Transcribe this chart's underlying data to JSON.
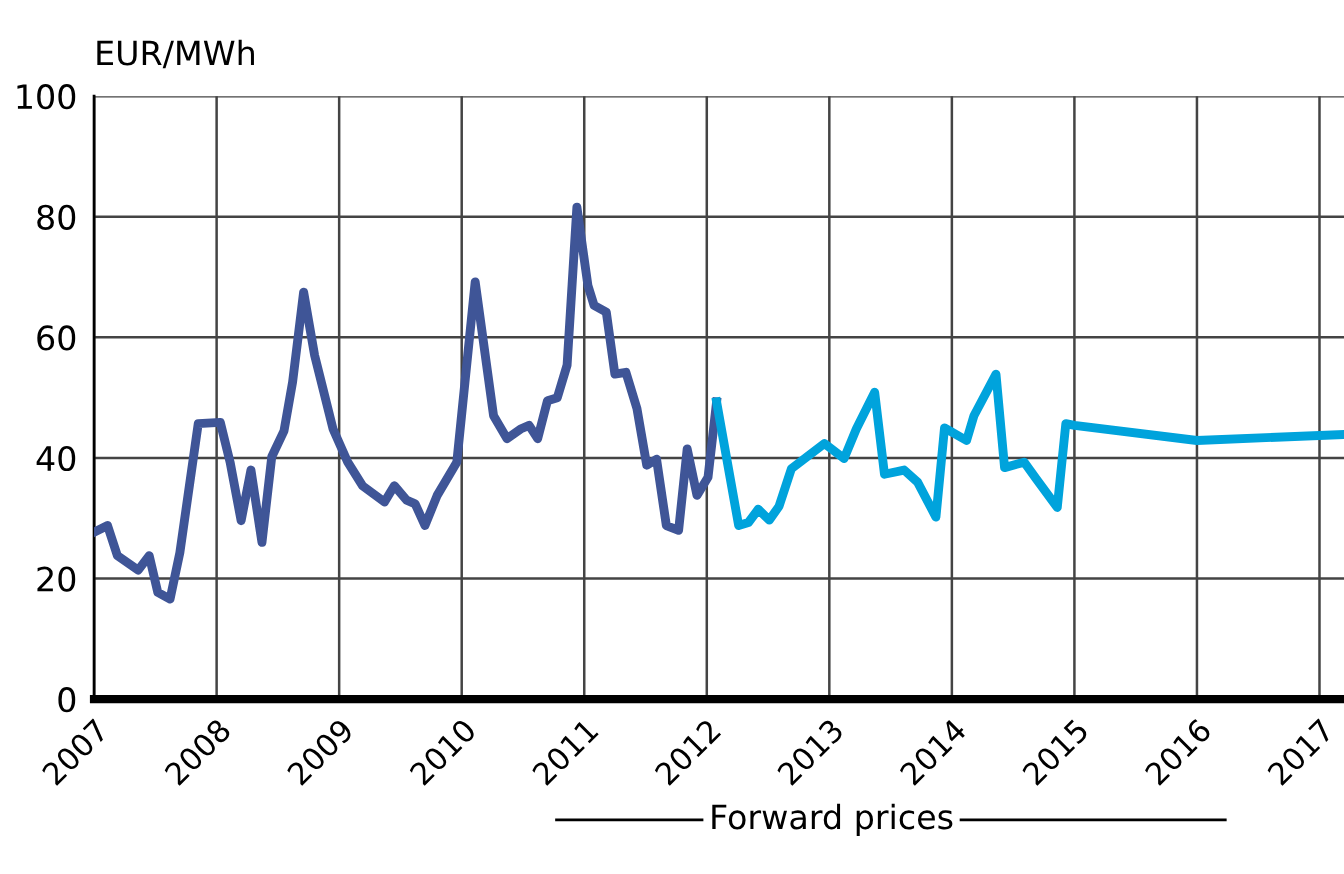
{
  "chart_data": {
    "type": "line",
    "ylabel": "EUR/MWh",
    "xlim": [
      2007,
      2017.2
    ],
    "xticks": [
      2007,
      2008,
      2009,
      2010,
      2011,
      2012,
      2013,
      2014,
      2015,
      2016,
      2017
    ],
    "ylim": [
      0,
      100
    ],
    "yticks": [
      0,
      20,
      40,
      60,
      80,
      100
    ],
    "grid": true,
    "line_style": "solid",
    "marker": "none",
    "annotations": [
      "Forward prices"
    ],
    "series": [
      {
        "color": "#3f5597",
        "x": [
          2007.0,
          2007.11,
          2007.19,
          2007.36,
          2007.45,
          2007.52,
          2007.62,
          2007.7,
          2007.85,
          2008.03,
          2008.11,
          2008.2,
          2008.28,
          2008.37,
          2008.45,
          2008.55,
          2008.62,
          2008.71,
          2008.8,
          2008.95,
          2009.07,
          2009.19,
          2009.37,
          2009.45,
          2009.55,
          2009.62,
          2009.7,
          2009.8,
          2009.96,
          2010.11,
          2010.26,
          2010.37,
          2010.48,
          2010.55,
          2010.62,
          2010.7,
          2010.78,
          2010.86,
          2010.94,
          2011.03,
          2011.08,
          2011.18,
          2011.25,
          2011.34,
          2011.43,
          2011.51,
          2011.59,
          2011.67,
          2011.77,
          2011.84,
          2011.92,
          2012.01,
          2012.08
        ],
        "values": [
          27.7,
          28.8,
          23.8,
          21.4,
          23.8,
          17.7,
          16.6,
          24.3,
          45.7,
          45.9,
          39.3,
          29.6,
          38,
          26,
          40.2,
          44.5,
          52.6,
          67.5,
          57,
          44.8,
          39.3,
          35.4,
          32.7,
          35.4,
          33,
          32.4,
          28.8,
          33.8,
          39.3,
          69.2,
          47,
          43.2,
          44.8,
          45.4,
          43.2,
          49.5,
          50,
          55.4,
          81.6,
          68.6,
          65.3,
          64.2,
          53.9,
          54.2,
          48.2,
          38.8,
          39.8,
          28.8,
          28,
          41.5,
          33.8,
          36.8,
          49.3
        ]
      },
      {
        "color": "#00a3dc",
        "x": [
          2012.08,
          2012.26,
          2012.34,
          2012.42,
          2012.51,
          2012.59,
          2012.69,
          2012.96,
          2013.12,
          2013.22,
          2013.37,
          2013.45,
          2013.61,
          2013.72,
          2013.87,
          2013.94,
          2014.12,
          2014.18,
          2014.36,
          2014.43,
          2014.59,
          2014.69,
          2014.86,
          2014.93,
          2015.0,
          2016.0,
          2017.2
        ],
        "values": [
          49.3,
          28.8,
          29.3,
          31.5,
          29.7,
          32,
          38.2,
          42.4,
          39.9,
          44.8,
          50.9,
          37.3,
          38,
          36,
          30.2,
          45,
          42.9,
          47,
          53.9,
          38.4,
          39.3,
          36.5,
          31.8,
          45.7,
          45.4,
          42.9,
          43.9
        ]
      }
    ]
  }
}
